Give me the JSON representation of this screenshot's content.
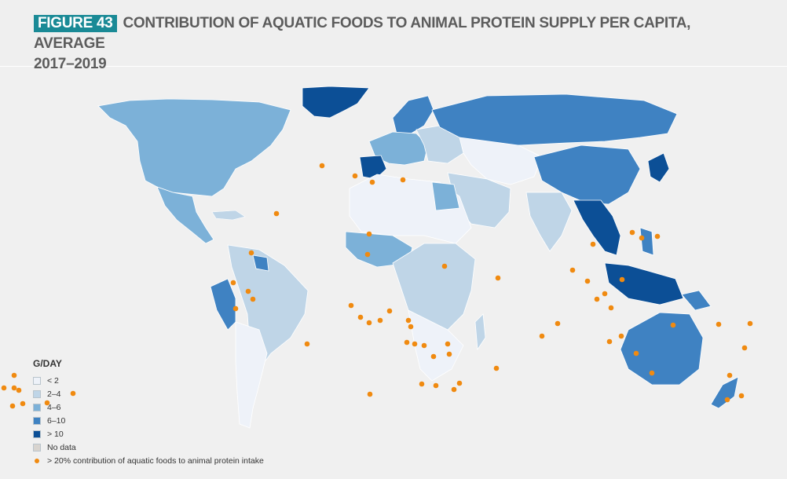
{
  "figure": {
    "badge": "FIGURE 43",
    "title": "CONTRIBUTION OF AQUATIC FOODS TO ANIMAL PROTEIN SUPPLY PER CAPITA, AVERAGE",
    "title_line2": "2017–2019"
  },
  "legend": {
    "title": "G/DAY",
    "items": [
      {
        "label": "< 2",
        "color": "#eef2f9"
      },
      {
        "label": "2–4",
        "color": "#bfd5e7"
      },
      {
        "label": "4–6",
        "color": "#7cb1d8"
      },
      {
        "label": "6–10",
        "color": "#3f82c2"
      },
      {
        "label": "> 10",
        "color": "#0c4f96"
      },
      {
        "label": "No data",
        "color": "#d8d4cf"
      }
    ],
    "dot_label": "> 20% contribution of aquatic foods to animal protein intake"
  },
  "colors": {
    "background": "#f0f0f0",
    "badge": "#1a8a96",
    "dot": "#f08a10",
    "title_text": "#5c5c5c"
  }
}
